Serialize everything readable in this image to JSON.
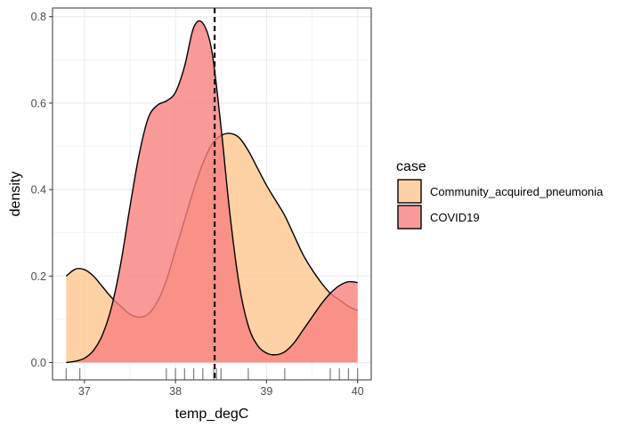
{
  "chart_data": {
    "type": "area",
    "xlabel": "temp_degC",
    "ylabel": "density",
    "xlim": [
      36.8,
      40.0
    ],
    "ylim": [
      0.0,
      0.8
    ],
    "x_ticks": [
      37,
      38,
      39,
      40
    ],
    "x_tick_labels": [
      "37",
      "38",
      "39",
      "40"
    ],
    "y_ticks": [
      0.0,
      0.2,
      0.4,
      0.6,
      0.8
    ],
    "y_tick_labels": [
      "0.0",
      "0.2",
      "0.4",
      "0.6",
      "0.8"
    ],
    "grid": true,
    "legend": {
      "title": "case",
      "placement": "right"
    },
    "series": [
      {
        "name": "Community_acquired_pneumonia",
        "color": "#FFC78F",
        "x": [
          36.8,
          36.9,
          37.0,
          37.1,
          37.2,
          37.3,
          37.4,
          37.5,
          37.6,
          37.7,
          37.8,
          37.9,
          38.0,
          38.1,
          38.2,
          38.3,
          38.4,
          38.5,
          38.6,
          38.7,
          38.8,
          38.9,
          39.0,
          39.1,
          39.2,
          39.3,
          39.4,
          39.5,
          39.6,
          39.7,
          39.8,
          39.9,
          40.0
        ],
        "y": [
          0.2,
          0.216,
          0.215,
          0.2,
          0.175,
          0.15,
          0.13,
          0.112,
          0.105,
          0.112,
          0.14,
          0.19,
          0.26,
          0.33,
          0.4,
          0.46,
          0.505,
          0.525,
          0.53,
          0.52,
          0.49,
          0.45,
          0.41,
          0.375,
          0.34,
          0.295,
          0.25,
          0.215,
          0.185,
          0.16,
          0.145,
          0.13,
          0.12
        ]
      },
      {
        "name": "COVID19",
        "color": "#F8817F",
        "x": [
          36.8,
          36.9,
          37.0,
          37.1,
          37.2,
          37.3,
          37.4,
          37.5,
          37.6,
          37.7,
          37.8,
          37.9,
          38.0,
          38.1,
          38.2,
          38.3,
          38.4,
          38.5,
          38.6,
          38.7,
          38.8,
          38.9,
          39.0,
          39.1,
          39.2,
          39.3,
          39.4,
          39.5,
          39.6,
          39.7,
          39.8,
          39.9,
          40.0
        ],
        "y": [
          0.0,
          0.003,
          0.01,
          0.028,
          0.065,
          0.13,
          0.23,
          0.36,
          0.48,
          0.565,
          0.595,
          0.605,
          0.625,
          0.685,
          0.775,
          0.785,
          0.72,
          0.545,
          0.34,
          0.18,
          0.085,
          0.04,
          0.022,
          0.018,
          0.025,
          0.045,
          0.075,
          0.105,
          0.135,
          0.16,
          0.178,
          0.187,
          0.185
        ]
      }
    ],
    "vline_dashed": 38.43,
    "rug": [
      36.8,
      36.95,
      37.9,
      38.0,
      38.1,
      38.2,
      38.3,
      38.42,
      38.45,
      38.5,
      38.8,
      39.2,
      39.7,
      39.8,
      39.9,
      40.0
    ]
  }
}
